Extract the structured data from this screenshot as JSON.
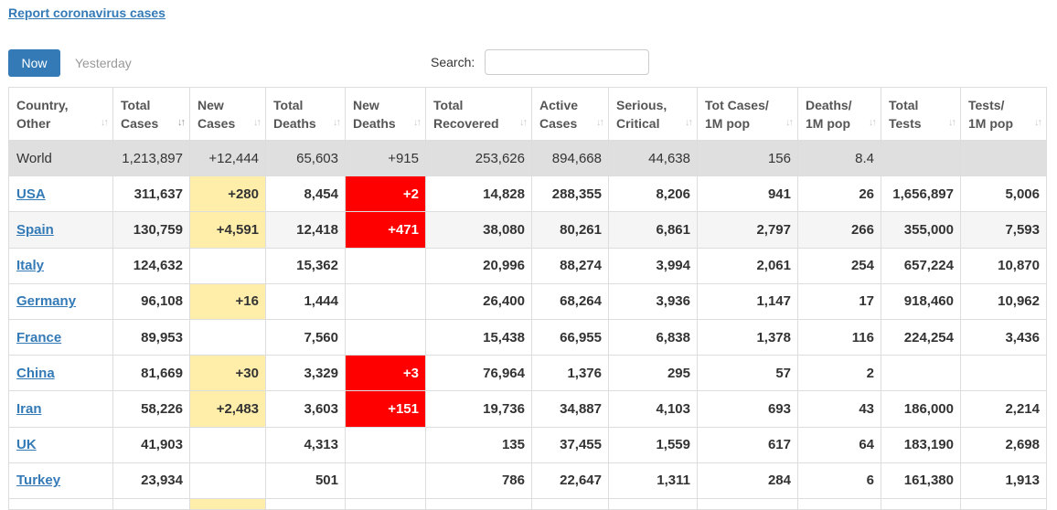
{
  "report_link": "Report coronavirus cases",
  "tabs": {
    "now": "Now",
    "yesterday": "Yesterday"
  },
  "search": {
    "label": "Search:",
    "value": "",
    "placeholder": ""
  },
  "columns": [
    {
      "line1": "Country,",
      "line2": "Other"
    },
    {
      "line1": "Total",
      "line2": "Cases"
    },
    {
      "line1": "New",
      "line2": "Cases"
    },
    {
      "line1": "Total",
      "line2": "Deaths"
    },
    {
      "line1": "New",
      "line2": "Deaths"
    },
    {
      "line1": "Total",
      "line2": "Recovered"
    },
    {
      "line1": "Active",
      "line2": "Cases"
    },
    {
      "line1": "Serious,",
      "line2": "Critical"
    },
    {
      "line1": "Tot Cases/",
      "line2": "1M pop"
    },
    {
      "line1": "Deaths/",
      "line2": "1M pop"
    },
    {
      "line1": "Total",
      "line2": "Tests"
    },
    {
      "line1": "Tests/",
      "line2": "1M pop"
    }
  ],
  "sort_icon": "sort-arrows-icon",
  "world": [
    "World",
    "1,213,897",
    "+12,444",
    "65,603",
    "+915",
    "253,626",
    "894,668",
    "44,638",
    "156",
    "8.4",
    "",
    ""
  ],
  "rows": [
    [
      "USA",
      "311,637",
      "+280",
      "8,454",
      "+2",
      "14,828",
      "288,355",
      "8,206",
      "941",
      "26",
      "1,656,897",
      "5,006"
    ],
    [
      "Spain",
      "130,759",
      "+4,591",
      "12,418",
      "+471",
      "38,080",
      "80,261",
      "6,861",
      "2,797",
      "266",
      "355,000",
      "7,593"
    ],
    [
      "Italy",
      "124,632",
      "",
      "15,362",
      "",
      "20,996",
      "88,274",
      "3,994",
      "2,061",
      "254",
      "657,224",
      "10,870"
    ],
    [
      "Germany",
      "96,108",
      "+16",
      "1,444",
      "",
      "26,400",
      "68,264",
      "3,936",
      "1,147",
      "17",
      "918,460",
      "10,962"
    ],
    [
      "France",
      "89,953",
      "",
      "7,560",
      "",
      "15,438",
      "66,955",
      "6,838",
      "1,378",
      "116",
      "224,254",
      "3,436"
    ],
    [
      "China",
      "81,669",
      "+30",
      "3,329",
      "+3",
      "76,964",
      "1,376",
      "295",
      "57",
      "2",
      "",
      ""
    ],
    [
      "Iran",
      "58,226",
      "+2,483",
      "3,603",
      "+151",
      "19,736",
      "34,887",
      "4,103",
      "693",
      "43",
      "186,000",
      "2,214"
    ],
    [
      "UK",
      "41,903",
      "",
      "4,313",
      "",
      "135",
      "37,455",
      "1,559",
      "617",
      "64",
      "183,190",
      "2,698"
    ],
    [
      "Turkey",
      "23,934",
      "",
      "501",
      "",
      "786",
      "22,647",
      "1,311",
      "284",
      "6",
      "161,380",
      "1,913"
    ]
  ],
  "colors": {
    "accent": "#337ab7",
    "new_cases_highlight": "#ffeeaa",
    "new_deaths_highlight": "#ff0000",
    "world_row": "#dfdfdf"
  }
}
